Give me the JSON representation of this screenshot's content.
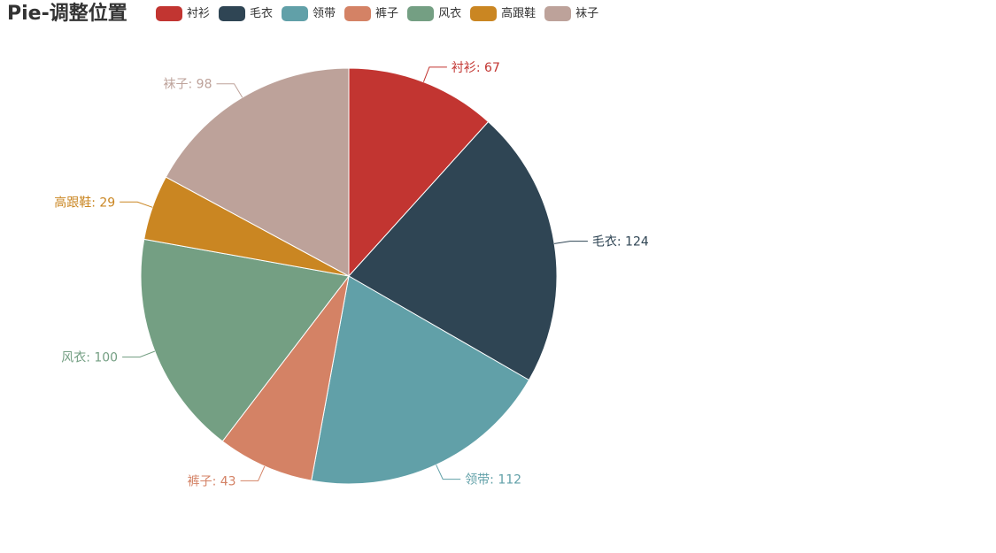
{
  "chart_data": {
    "type": "pie",
    "title": "Pie-调整位置",
    "legend_position": "top",
    "categories": [
      "衬衫",
      "毛衣",
      "领带",
      "裤子",
      "风衣",
      "高跟鞋",
      "袜子"
    ],
    "values": [
      67,
      124,
      112,
      43,
      100,
      29,
      98
    ],
    "colors": [
      "#c23531",
      "#2f4554",
      "#61a0a8",
      "#d48265",
      "#749f83",
      "#ca8622",
      "#bda29a"
    ],
    "data_labels": [
      "衬衫: 67",
      "毛衣: 124",
      "领带: 112",
      "裤子: 43",
      "风衣: 100",
      "高跟鞋: 29",
      "袜子: 98"
    ],
    "start_angle_deg": 90,
    "direction": "clockwise"
  }
}
